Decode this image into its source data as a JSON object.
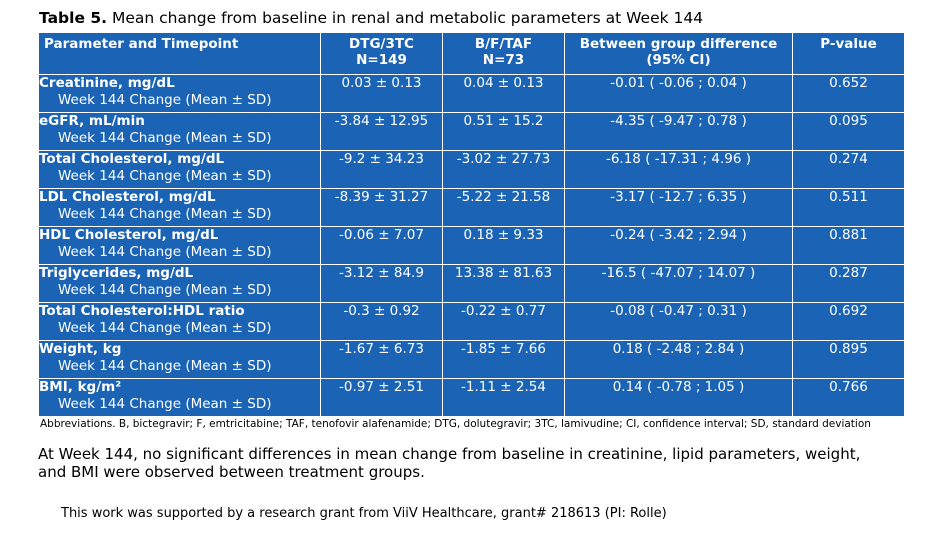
{
  "title": {
    "label": "Table 5.",
    "text": " Mean change from baseline in renal and metabolic parameters at Week 144"
  },
  "table": {
    "headers": {
      "param": "Parameter and Timepoint",
      "dtg": [
        "DTG/3TC",
        "N=149"
      ],
      "bft": [
        "B/F/TAF",
        "N=73"
      ],
      "diff": [
        "Between group difference",
        "(95% CI)"
      ],
      "p": "P-value"
    },
    "rows": [
      {
        "name": "Creatinine, mg/dL",
        "sub": "Week 144 Change (Mean ± SD)",
        "dtg": "0.03 ± 0.13",
        "bft": "0.04 ± 0.13",
        "diff": "-0.01 ( -0.06 ; 0.04 )",
        "p": "0.652"
      },
      {
        "name": "eGFR, mL/min",
        "sub": "Week 144 Change (Mean ± SD)",
        "dtg": "-3.84 ± 12.95",
        "bft": "0.51 ± 15.2",
        "diff": "-4.35 ( -9.47 ; 0.78 )",
        "p": "0.095"
      },
      {
        "name": "Total Cholesterol, mg/dL",
        "sub": "Week 144 Change (Mean ± SD)",
        "dtg": "-9.2 ± 34.23",
        "bft": "-3.02 ± 27.73",
        "diff": "-6.18 ( -17.31 ; 4.96 )",
        "p": "0.274"
      },
      {
        "name": "LDL Cholesterol, mg/dL",
        "sub": "Week 144 Change (Mean ± SD)",
        "dtg": "-8.39 ± 31.27",
        "bft": "-5.22 ± 21.58",
        "diff": "-3.17 ( -12.7 ; 6.35 )",
        "p": "0.511"
      },
      {
        "name": "HDL Cholesterol, mg/dL",
        "sub": "Week 144 Change (Mean ± SD)",
        "dtg": "-0.06 ± 7.07",
        "bft": "0.18 ± 9.33",
        "diff": "-0.24 ( -3.42 ; 2.94 )",
        "p": "0.881"
      },
      {
        "name": "Triglycerides, mg/dL",
        "sub": "Week 144 Change (Mean ± SD)",
        "dtg": "-3.12 ± 84.9",
        "bft": "13.38 ± 81.63",
        "diff": "-16.5 ( -47.07 ; 14.07 )",
        "p": "0.287"
      },
      {
        "name": "Total Cholesterol:HDL ratio",
        "sub": "Week 144 Change (Mean ± SD)",
        "dtg": "-0.3 ± 0.92",
        "bft": "-0.22 ± 0.77",
        "diff": "-0.08 ( -0.47 ; 0.31 )",
        "p": "0.692"
      },
      {
        "name": "Weight, kg",
        "sub": "Week 144 Change (Mean ± SD)",
        "dtg": "-1.67 ± 6.73",
        "bft": "-1.85 ± 7.66",
        "diff": "0.18 ( -2.48 ; 2.84 )",
        "p": "0.895"
      },
      {
        "name": "BMI, kg/m²",
        "sub": "Week 144 Change (Mean ± SD)",
        "dtg": "-0.97 ± 2.51",
        "bft": "-1.11 ± 2.54",
        "diff": "0.14 ( -0.78 ; 1.05 )",
        "p": "0.766"
      }
    ]
  },
  "abbreviations": "Abbreviations. B, bictegravir; F, emtricitabine; TAF,  tenofovir alafenamide; DTG, dolutegravir; 3TC, lamivudine; CI, confidence interval; SD, standard deviation",
  "summary": [
    " At Week 144, no significant differences in mean change from baseline in creatinine, lipid parameters, weight,",
    "and BMI were observed between treatment groups."
  ],
  "funding": "This work was supported by a research grant from ViiV Healthcare, grant# 218613  (PI: Rolle)",
  "colors": {
    "table_bg": "#1b64b5",
    "table_text": "#ffffff",
    "table_border": "#ffffff"
  }
}
